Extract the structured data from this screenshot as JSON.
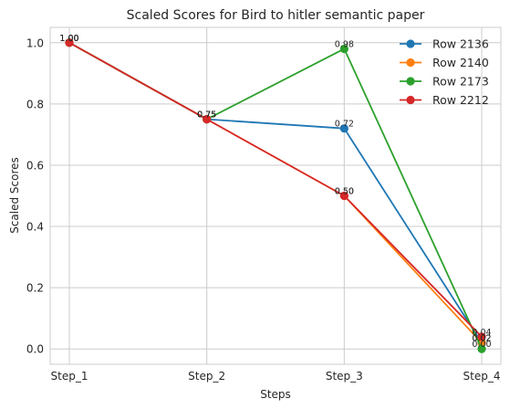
{
  "chart_data": {
    "type": "line",
    "title": "Scaled Scores for Bird to hitler semantic paper",
    "xlabel": "Steps",
    "ylabel": "Scaled Scores",
    "categories": [
      "Step_1",
      "Step_2",
      "Step_3",
      "Step_4"
    ],
    "ylim": [
      -0.05,
      1.05
    ],
    "yticks": [
      0.0,
      0.2,
      0.4,
      0.6,
      0.8,
      1.0
    ],
    "ytick_labels": [
      "0.0",
      "0.2",
      "0.4",
      "0.6",
      "0.8",
      "1.0"
    ],
    "grid": true,
    "legend": "top-right",
    "series": [
      {
        "name": "Row 2136",
        "color": "#1f77b4",
        "values": [
          1.0,
          0.75,
          0.72,
          0.02
        ]
      },
      {
        "name": "Row 2140",
        "color": "#ff7f0e",
        "values": [
          1.0,
          0.75,
          0.5,
          0.02
        ]
      },
      {
        "name": "Row 2173",
        "color": "#2ca02c",
        "values": [
          1.0,
          0.75,
          0.98,
          0.0
        ]
      },
      {
        "name": "Row 2212",
        "color": "#d62728",
        "values": [
          1.0,
          0.75,
          0.5,
          0.04
        ]
      }
    ],
    "data_labels": [
      [
        "1.00",
        "0.75",
        "0.72",
        "0.02"
      ],
      [
        "1.00",
        "0.75",
        "0.50",
        "0.02"
      ],
      [
        "1.00",
        "0.75",
        "0.98",
        "0.00"
      ],
      [
        "1.00",
        "0.75",
        "0.50",
        "0.04"
      ]
    ]
  }
}
